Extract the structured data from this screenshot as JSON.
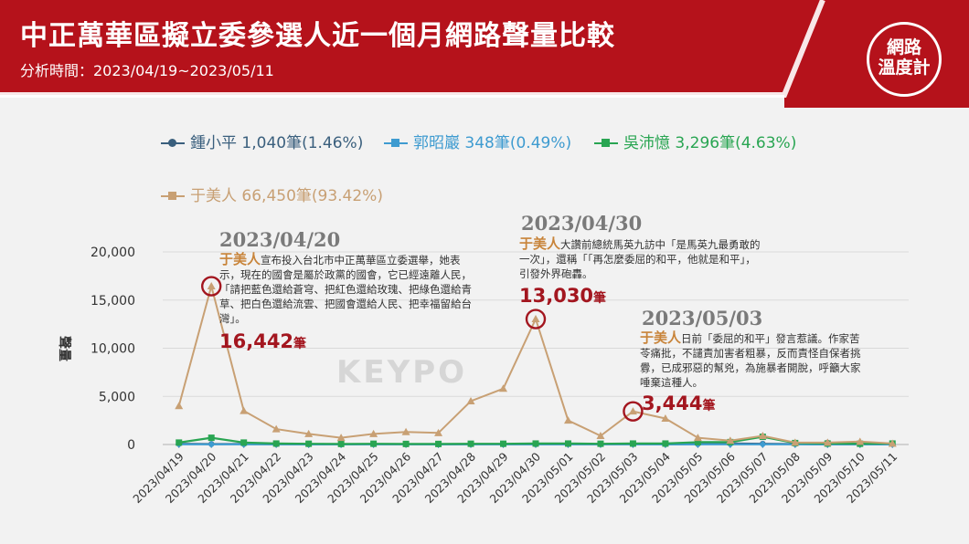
{
  "header": {
    "title": "中正萬華區擬立委參選人近一個月網路聲量比較",
    "subtitle": "分析時間：2023/04/19~2023/05/11",
    "logo_line1": "網路",
    "logo_line2": "溫度計"
  },
  "watermark": "KEYPO",
  "colors": {
    "banner": "#b5121b",
    "gold": "#c8843a",
    "dark_red": "#a3161f"
  },
  "legend": [
    {
      "label": "鍾小平 1,040筆(1.46%)",
      "color": "#3a5f7d",
      "marker": "circle"
    },
    {
      "label": "郭昭巖 348筆(0.49%)",
      "color": "#3e9bd0",
      "marker": "diamond"
    },
    {
      "label": "吳沛憶 3,296筆(4.63%)",
      "color": "#29a552",
      "marker": "square"
    },
    {
      "label": "于美人 66,450筆(93.42%)",
      "color": "#c8a074",
      "marker": "triangle"
    }
  ],
  "annotations": [
    {
      "date": "2023/04/20",
      "name": "于美人",
      "text": "宣布投入台北市中正萬華區立委選舉，她表示，現在的國會是屬於政黨的國會，它已經遠離人民，「請把藍色還給蒼穹、把紅色還給玫瑰、把綠色還給青草、把白色還給流雲、把國會還給人民、把幸福留給台灣」。",
      "value": "16,442",
      "unit": "筆"
    },
    {
      "date": "2023/04/30",
      "name": "于美人",
      "text": "大讚前總統馬英九訪中「是馬英九最勇敢的一次」，還稱「「再怎麼委屈的和平，他就是和平」，引發外界砲轟。",
      "value": "13,030",
      "unit": "筆"
    },
    {
      "date": "2023/05/03",
      "name": "于美人",
      "text": "日前「委屈的和平」發言惹議。作家苦苓痛批，不譴責加害者粗暴，反而責怪自保者挑釁，已成邪惡的幫兇，為施暴者開脫，呼籲大家唾棄這種人。",
      "value": "3,444",
      "unit": "筆"
    }
  ],
  "chart_data": {
    "type": "line",
    "title": "中正萬華區擬立委參選人近一個月網路聲量比較",
    "xlabel": "",
    "ylabel": "聲量",
    "ylim": [
      0,
      20000
    ],
    "yticks": [
      0,
      5000,
      10000,
      15000,
      20000
    ],
    "ytick_labels": [
      "0",
      "5,000",
      "10,000",
      "15,000",
      "20,000"
    ],
    "grid": true,
    "legend_position": "top",
    "categories": [
      "2023/04/19",
      "2023/04/20",
      "2023/04/21",
      "2023/04/22",
      "2023/04/23",
      "2023/04/24",
      "2023/04/25",
      "2023/04/26",
      "2023/04/27",
      "2023/04/28",
      "2023/04/29",
      "2023/04/30",
      "2023/05/01",
      "2023/05/02",
      "2023/05/03",
      "2023/05/04",
      "2023/05/05",
      "2023/05/06",
      "2023/05/07",
      "2023/05/08",
      "2023/05/09",
      "2023/05/10",
      "2023/05/11"
    ],
    "series": [
      {
        "name": "于美人",
        "color": "#c8a074",
        "marker": "triangle",
        "values": [
          4000,
          16442,
          3500,
          1600,
          1100,
          700,
          1100,
          1300,
          1200,
          4500,
          5800,
          13030,
          2500,
          900,
          3444,
          2700,
          700,
          400,
          900,
          200,
          200,
          300,
          100
        ]
      },
      {
        "name": "鍾小平",
        "color": "#3a5f7d",
        "marker": "circle",
        "values": [
          80,
          50,
          60,
          30,
          30,
          40,
          40,
          30,
          30,
          40,
          30,
          30,
          40,
          40,
          40,
          40,
          50,
          100,
          80,
          50,
          200,
          60,
          40
        ]
      },
      {
        "name": "郭昭巖",
        "color": "#3e9bd0",
        "marker": "diamond",
        "values": [
          20,
          20,
          20,
          20,
          10,
          10,
          20,
          20,
          10,
          20,
          20,
          20,
          20,
          20,
          20,
          10,
          20,
          20,
          20,
          20,
          10,
          10,
          10
        ]
      },
      {
        "name": "吳沛憶",
        "color": "#29a552",
        "marker": "square",
        "values": [
          200,
          700,
          200,
          100,
          80,
          60,
          80,
          60,
          60,
          80,
          80,
          100,
          100,
          80,
          100,
          100,
          250,
          250,
          800,
          150,
          100,
          80,
          100
        ]
      }
    ],
    "highlights": [
      {
        "category": "2023/04/20",
        "value": 16442
      },
      {
        "category": "2023/04/30",
        "value": 13030
      },
      {
        "category": "2023/05/03",
        "value": 3444
      }
    ]
  }
}
